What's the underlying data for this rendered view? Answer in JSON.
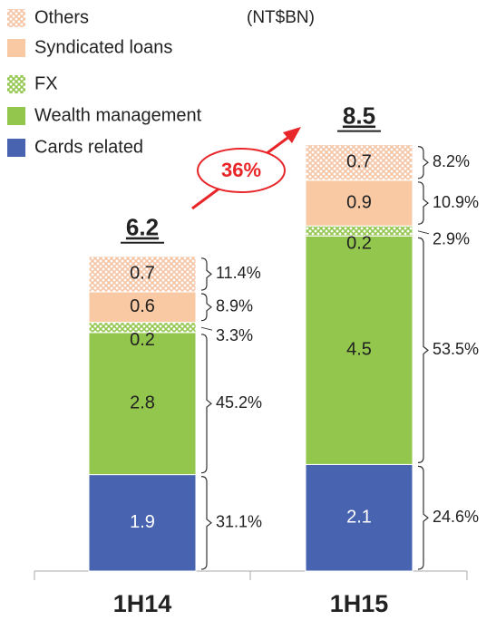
{
  "chart_data": {
    "type": "stacked_bar",
    "subtitle": "(NT$BN)",
    "categories": [
      "1H14",
      "1H15"
    ],
    "series": [
      {
        "name": "Cards related",
        "color": "#4863b0",
        "hatch": false,
        "values": [
          1.9,
          2.1
        ],
        "shares": [
          "31.1%",
          "24.6%"
        ]
      },
      {
        "name": "Wealth management",
        "color": "#92c64c",
        "hatch": false,
        "values": [
          2.8,
          4.5
        ],
        "shares": [
          "45.2%",
          "53.5%"
        ]
      },
      {
        "name": "FX",
        "color": "#92c64c",
        "hatch": true,
        "values": [
          0.2,
          0.2
        ],
        "shares": [
          "3.3%",
          "2.9%"
        ]
      },
      {
        "name": "Syndicated loans",
        "color": "#f9c9a4",
        "hatch": false,
        "values": [
          0.6,
          0.9
        ],
        "shares": [
          "8.9%",
          "10.9%"
        ]
      },
      {
        "name": "Others",
        "color": "#f5c4a4",
        "hatch": true,
        "values": [
          0.7,
          0.7
        ],
        "shares": [
          "11.4%",
          "8.2%"
        ]
      }
    ],
    "totals": [
      6.2,
      8.5
    ],
    "growth_label": "36%",
    "growth_color": "#e8262a"
  }
}
